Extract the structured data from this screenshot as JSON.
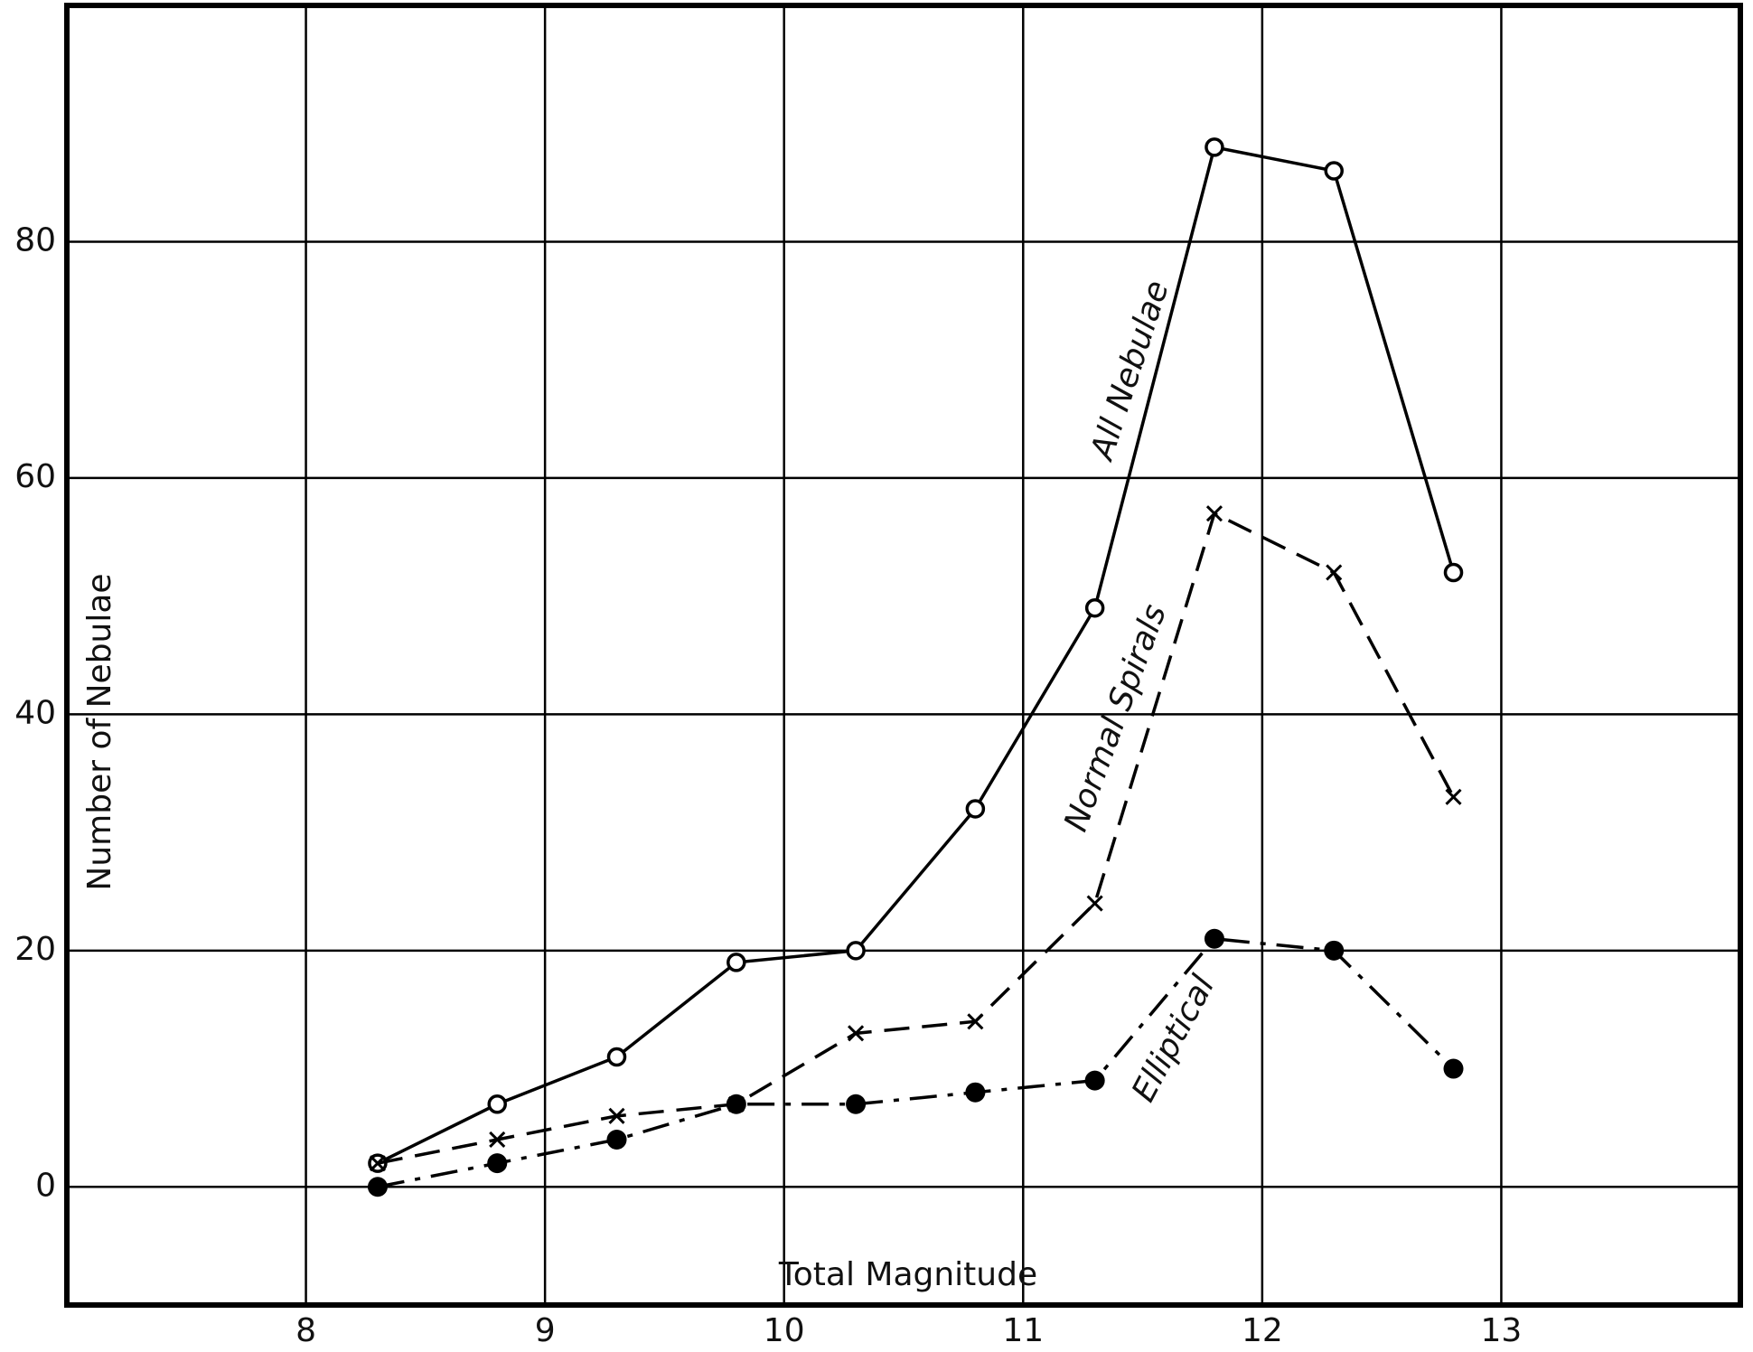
{
  "chart_data": {
    "type": "line",
    "xlabel": "Total Magnitude",
    "ylabel": "Number of Nebulae",
    "x": [
      8.3,
      8.8,
      9.3,
      9.8,
      10.3,
      10.8,
      11.3,
      11.8,
      12.3,
      12.8
    ],
    "series": [
      {
        "name": "All Nebulae",
        "color": "#000000",
        "linestyle": "solid",
        "marker": "circle-open",
        "values": [
          2,
          7,
          11,
          19,
          20,
          32,
          49,
          88,
          86,
          52
        ]
      },
      {
        "name": "Normal Spirals",
        "color": "#000000",
        "linestyle": "dashed",
        "marker": "x",
        "values": [
          2,
          4,
          6,
          7,
          13,
          14,
          24,
          57,
          52,
          33
        ]
      },
      {
        "name": "Elliptical",
        "color": "#000000",
        "linestyle": "dashdot",
        "marker": "circle-filled",
        "values": [
          0,
          2,
          4,
          7,
          7,
          8,
          9,
          21,
          20,
          10
        ]
      }
    ],
    "xlim": [
      7,
      14
    ],
    "ylim": [
      -10,
      100
    ],
    "xticks": [
      8,
      9,
      10,
      11,
      12,
      13
    ],
    "yticks": [
      0,
      20,
      40,
      60,
      80
    ],
    "grid": true
  }
}
